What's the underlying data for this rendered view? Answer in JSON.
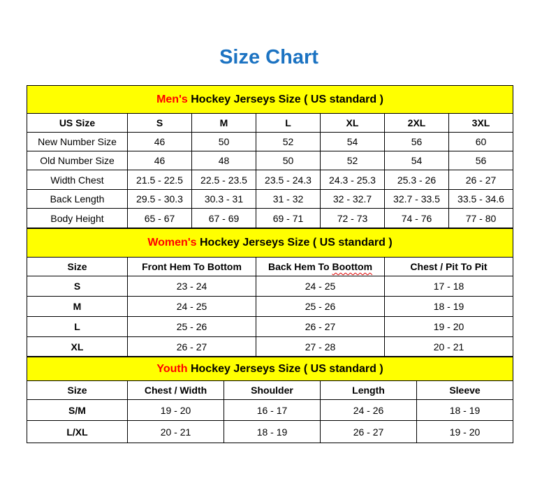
{
  "title": "Size Chart",
  "colors": {
    "title": "#1C73C2",
    "header_bg": "#FFFF00",
    "accent": "#FF0000"
  },
  "sections": [
    {
      "id": "men",
      "heading_accent": "Men's",
      "heading_rest": "Hockey Jerseys Size ( US standard )",
      "columns": [
        "US Size",
        "S",
        "M",
        "L",
        "XL",
        "2XL",
        "3XL"
      ],
      "rows": [
        [
          "New Number Size",
          "46",
          "50",
          "52",
          "54",
          "56",
          "60"
        ],
        [
          "Old Number Size",
          "46",
          "48",
          "50",
          "52",
          "54",
          "56"
        ],
        [
          "Width Chest",
          "21.5 - 22.5",
          "22.5 - 23.5",
          "23.5 - 24.3",
          "24.3 - 25.3",
          "25.3 - 26",
          "26 - 27"
        ],
        [
          "Back Length",
          "29.5 - 30.3",
          "30.3 - 31",
          "31 - 32",
          "32 - 32.7",
          "32.7 - 33.5",
          "33.5 - 34.6"
        ],
        [
          "Body Height",
          "65 - 67",
          "67 - 69",
          "69 - 71",
          "72 - 73",
          "74 - 76",
          "77 - 80"
        ]
      ]
    },
    {
      "id": "women",
      "heading_accent": "Women's",
      "heading_rest": "Hockey Jerseys Size ( US standard )",
      "columns": [
        "Size",
        "Front Hem To Bottom",
        "Back Hem To Boottom",
        "Chest / Pit To Pit"
      ],
      "rows": [
        [
          "S",
          "23 - 24",
          "24 - 25",
          "17 - 18"
        ],
        [
          "M",
          "24 - 25",
          "25 - 26",
          "18 - 19"
        ],
        [
          "L",
          "25 - 26",
          "26 - 27",
          "19 - 20"
        ],
        [
          "XL",
          "26 - 27",
          "27 - 28",
          "20 - 21"
        ]
      ]
    },
    {
      "id": "youth",
      "heading_accent": "Youth",
      "heading_rest": "Hockey Jerseys Size ( US standard )",
      "columns": [
        "Size",
        "Chest / Width",
        "Shoulder",
        "Length",
        "Sleeve"
      ],
      "rows": [
        [
          "S/M",
          "19 - 20",
          "16 - 17",
          "24 - 26",
          "18 - 19"
        ],
        [
          "L/XL",
          "20 - 21",
          "18 - 19",
          "26 - 27",
          "19 - 20"
        ]
      ]
    }
  ]
}
